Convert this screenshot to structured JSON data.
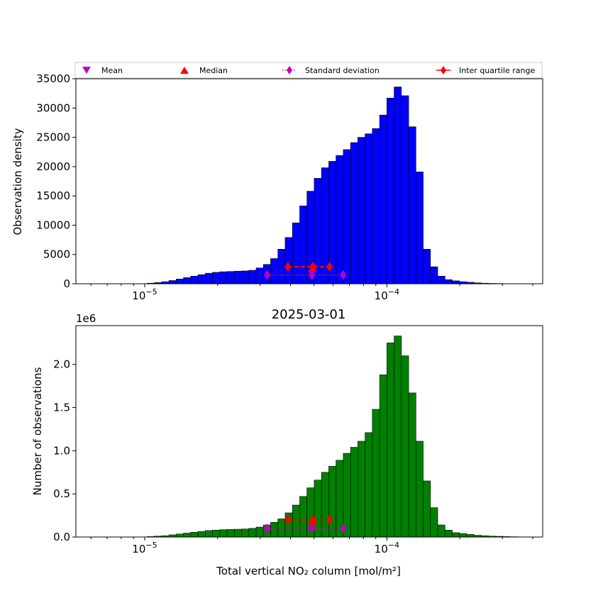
{
  "legend": {
    "placement": "top",
    "entries": [
      {
        "label": "Mean",
        "marker": "triangle-down",
        "color": "#bf00bf"
      },
      {
        "label": "Median",
        "marker": "triangle-up",
        "color": "#ff0000"
      },
      {
        "label": "Standard deviation",
        "marker": "diamond",
        "color": "#bf00bf",
        "linestyle": "dotted"
      },
      {
        "label": "Inter quartile range",
        "marker": "diamond",
        "color": "#ff0000",
        "linestyle": "solid"
      }
    ]
  },
  "chart_data": [
    {
      "type": "bar",
      "title": "",
      "xlabel": "",
      "ylabel": "Observation density",
      "xscale": "log",
      "xlim": [
        5.2e-06,
        0.00044
      ],
      "ylim": [
        0,
        35000
      ],
      "yticks": [
        "0",
        "5000",
        "10000",
        "15000",
        "20000",
        "25000",
        "30000",
        "35000"
      ],
      "xticks": [
        {
          "value": 1e-05,
          "base": "10",
          "exp": "−5"
        },
        {
          "value": 0.0001,
          "base": "10",
          "exp": "−4"
        }
      ],
      "bar_color": "#0000ff",
      "bin_edges_log10": {
        "start": -5.2,
        "step": 0.03,
        "count": 70
      },
      "values": [
        0,
        0,
        0,
        0,
        0,
        0,
        0,
        100,
        200,
        350,
        550,
        800,
        1050,
        1300,
        1550,
        1800,
        1950,
        2050,
        2100,
        2150,
        2200,
        2300,
        2700,
        3300,
        4300,
        5900,
        7900,
        10400,
        13300,
        15800,
        18000,
        19800,
        20900,
        21900,
        22900,
        24100,
        25000,
        25600,
        26500,
        28800,
        31700,
        33600,
        32100,
        26800,
        19100,
        5900,
        2900,
        1300,
        700,
        500,
        350,
        250,
        150,
        100,
        60,
        40,
        20,
        10,
        5,
        0,
        0,
        0,
        0,
        0,
        0,
        0,
        0,
        0,
        0,
        0
      ],
      "stats": {
        "mean": {
          "x": 4.9e-05,
          "y": 1800
        },
        "median": {
          "x": 4.95e-05,
          "y": 2800
        },
        "std": {
          "x": [
            3.2e-05,
            4.9e-05,
            6.6e-05
          ],
          "y": 1500
        },
        "iqr": {
          "x": [
            3.9e-05,
            4.95e-05,
            5.8e-05
          ],
          "y": 2900
        }
      }
    },
    {
      "type": "bar",
      "title": "2025-03-01",
      "xlabel": "Total vertical NO₂ column [mol/m²]",
      "ylabel": "Number of observations",
      "offset_text": "1e6",
      "xscale": "log",
      "xlim": [
        5.2e-06,
        0.00044
      ],
      "ylim": [
        0,
        2.45
      ],
      "yticks": [
        "0.0",
        "0.5",
        "1.0",
        "1.5",
        "2.0"
      ],
      "xticks": [
        {
          "value": 1e-05,
          "base": "10",
          "exp": "−5"
        },
        {
          "value": 0.0001,
          "base": "10",
          "exp": "−4"
        }
      ],
      "bar_color": "#008000",
      "bin_edges_log10": {
        "start": -5.2,
        "step": 0.03,
        "count": 70
      },
      "values": [
        0,
        0,
        0,
        0,
        0,
        0,
        0,
        0.005,
        0.01,
        0.015,
        0.025,
        0.035,
        0.045,
        0.055,
        0.065,
        0.075,
        0.08,
        0.085,
        0.088,
        0.09,
        0.093,
        0.1,
        0.115,
        0.14,
        0.17,
        0.21,
        0.28,
        0.37,
        0.47,
        0.57,
        0.66,
        0.75,
        0.82,
        0.89,
        0.97,
        1.04,
        1.11,
        1.21,
        1.48,
        1.88,
        2.25,
        2.33,
        2.1,
        1.67,
        1.11,
        0.65,
        0.34,
        0.14,
        0.08,
        0.05,
        0.04,
        0.03,
        0.02,
        0.015,
        0.01,
        0.008,
        0.005,
        0.003,
        0.002,
        0.001,
        0,
        0,
        0,
        0,
        0,
        0,
        0,
        0,
        0,
        0
      ],
      "stats": {
        "mean": {
          "x": 4.9e-05,
          "y": 0.11
        },
        "median": {
          "x": 4.95e-05,
          "y": 0.18
        },
        "std": {
          "x": [
            3.2e-05,
            4.9e-05,
            6.6e-05
          ],
          "y": 0.1
        },
        "iqr": {
          "x": [
            3.9e-05,
            4.95e-05,
            5.8e-05
          ],
          "y": 0.2
        }
      }
    }
  ]
}
